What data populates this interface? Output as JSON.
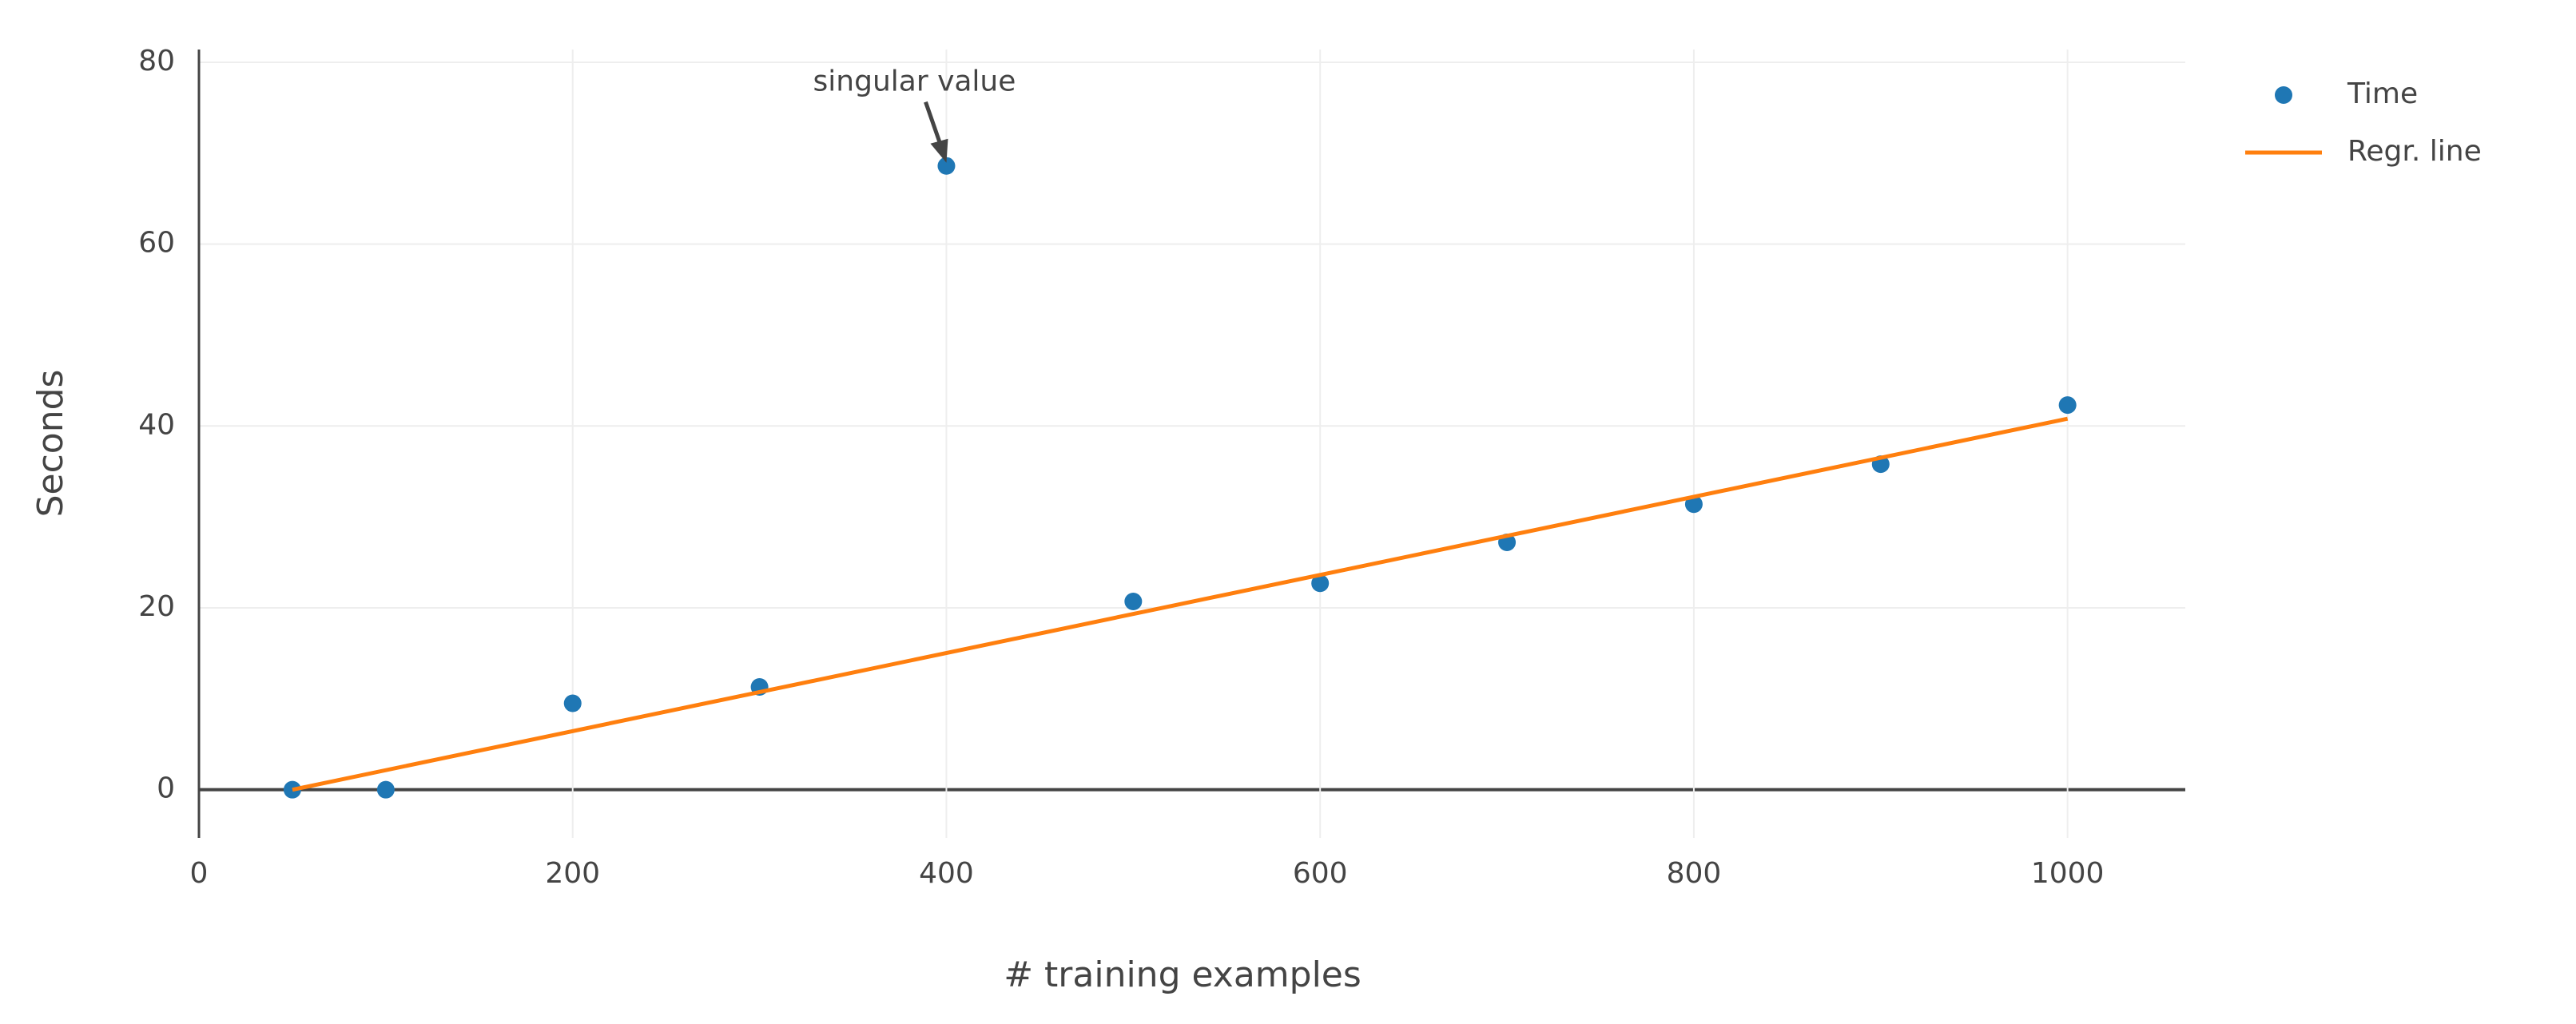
{
  "chart_data": {
    "type": "scatter",
    "x_label": "# training examples",
    "y_label": "Seconds",
    "annotation": "singular value",
    "series": [
      {
        "name": "Time",
        "type": "scatter",
        "color": "#1f77b4",
        "x": [
          50,
          100,
          200,
          300,
          400,
          500,
          600,
          700,
          800,
          900,
          1000
        ],
        "values": [
          0,
          0,
          9.5,
          11.3,
          68.6,
          20.7,
          22.7,
          27.2,
          31.4,
          35.8,
          42.3
        ]
      },
      {
        "name": "Regr. line",
        "type": "line",
        "color": "#ff7f0e",
        "x": [
          50,
          1000
        ],
        "values": [
          0,
          40.8
        ]
      }
    ],
    "xlim": [
      0,
      1063
    ],
    "ylim": [
      -5.3,
      81.4
    ],
    "xticks": [
      0,
      200,
      400,
      600,
      800,
      1000
    ],
    "yticks": [
      0,
      20,
      40,
      60,
      80
    ],
    "grid": true,
    "legend": "top-right"
  }
}
